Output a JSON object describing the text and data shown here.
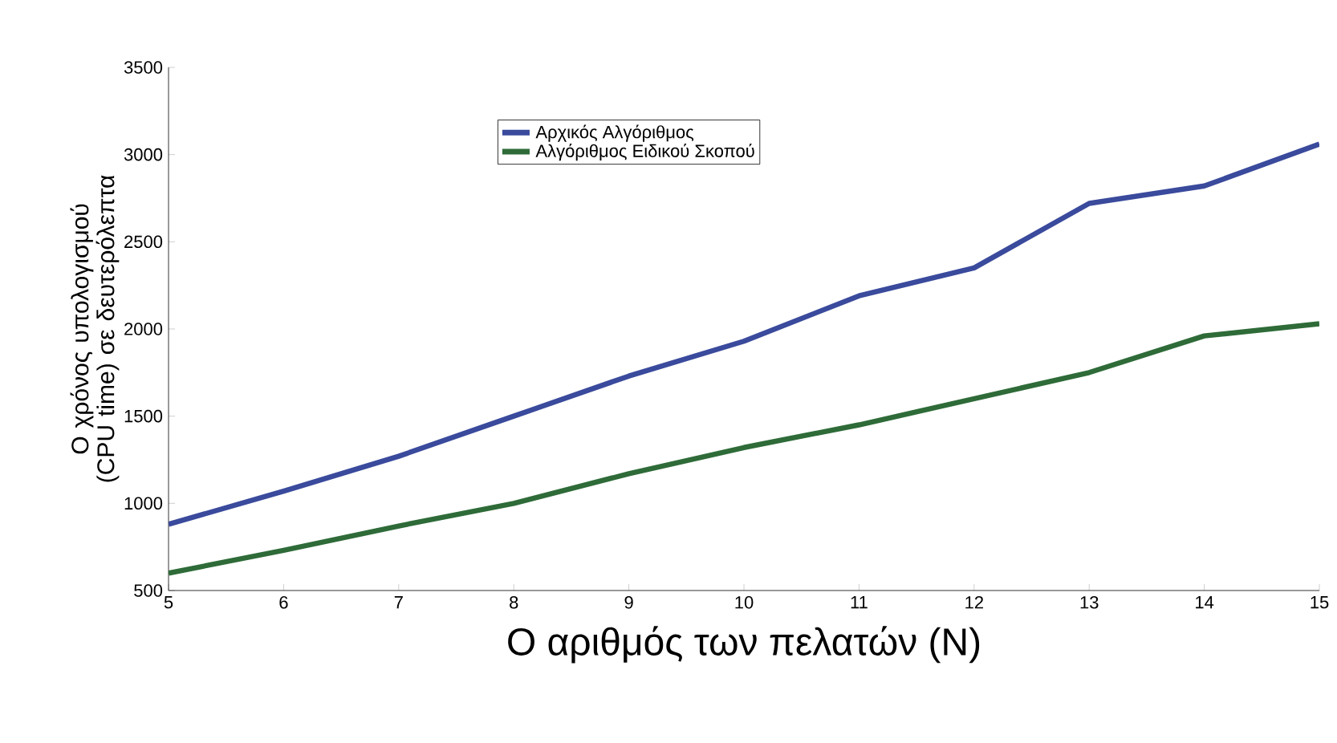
{
  "chart_data": {
    "type": "line",
    "xlabel": "Ο αριθμός των πελατών (N)",
    "ylabel": "Ο χρόνος υπολογισμού (CPU time) σε δευτερόλεπτα",
    "x": [
      5,
      6,
      7,
      8,
      9,
      10,
      11,
      12,
      13,
      14,
      15
    ],
    "series": [
      {
        "name": "Αρχικός Αλγόριθμος",
        "color": "#3a4a9c",
        "values": [
          880,
          1070,
          1270,
          1500,
          1730,
          1930,
          2190,
          2350,
          2720,
          2820,
          3060
        ]
      },
      {
        "name": "Αλγόριθμος Ειδικού Σκοπού",
        "color": "#2e6b38",
        "values": [
          600,
          730,
          870,
          1000,
          1170,
          1320,
          1450,
          1600,
          1750,
          1960,
          2030
        ]
      }
    ],
    "xlim": [
      5,
      15
    ],
    "ylim": [
      500,
      3500
    ],
    "xticks": [
      5,
      6,
      7,
      8,
      9,
      10,
      11,
      12,
      13,
      14,
      15
    ],
    "yticks": [
      500,
      1000,
      1500,
      2000,
      2500,
      3000,
      3500
    ],
    "legend": "top"
  }
}
